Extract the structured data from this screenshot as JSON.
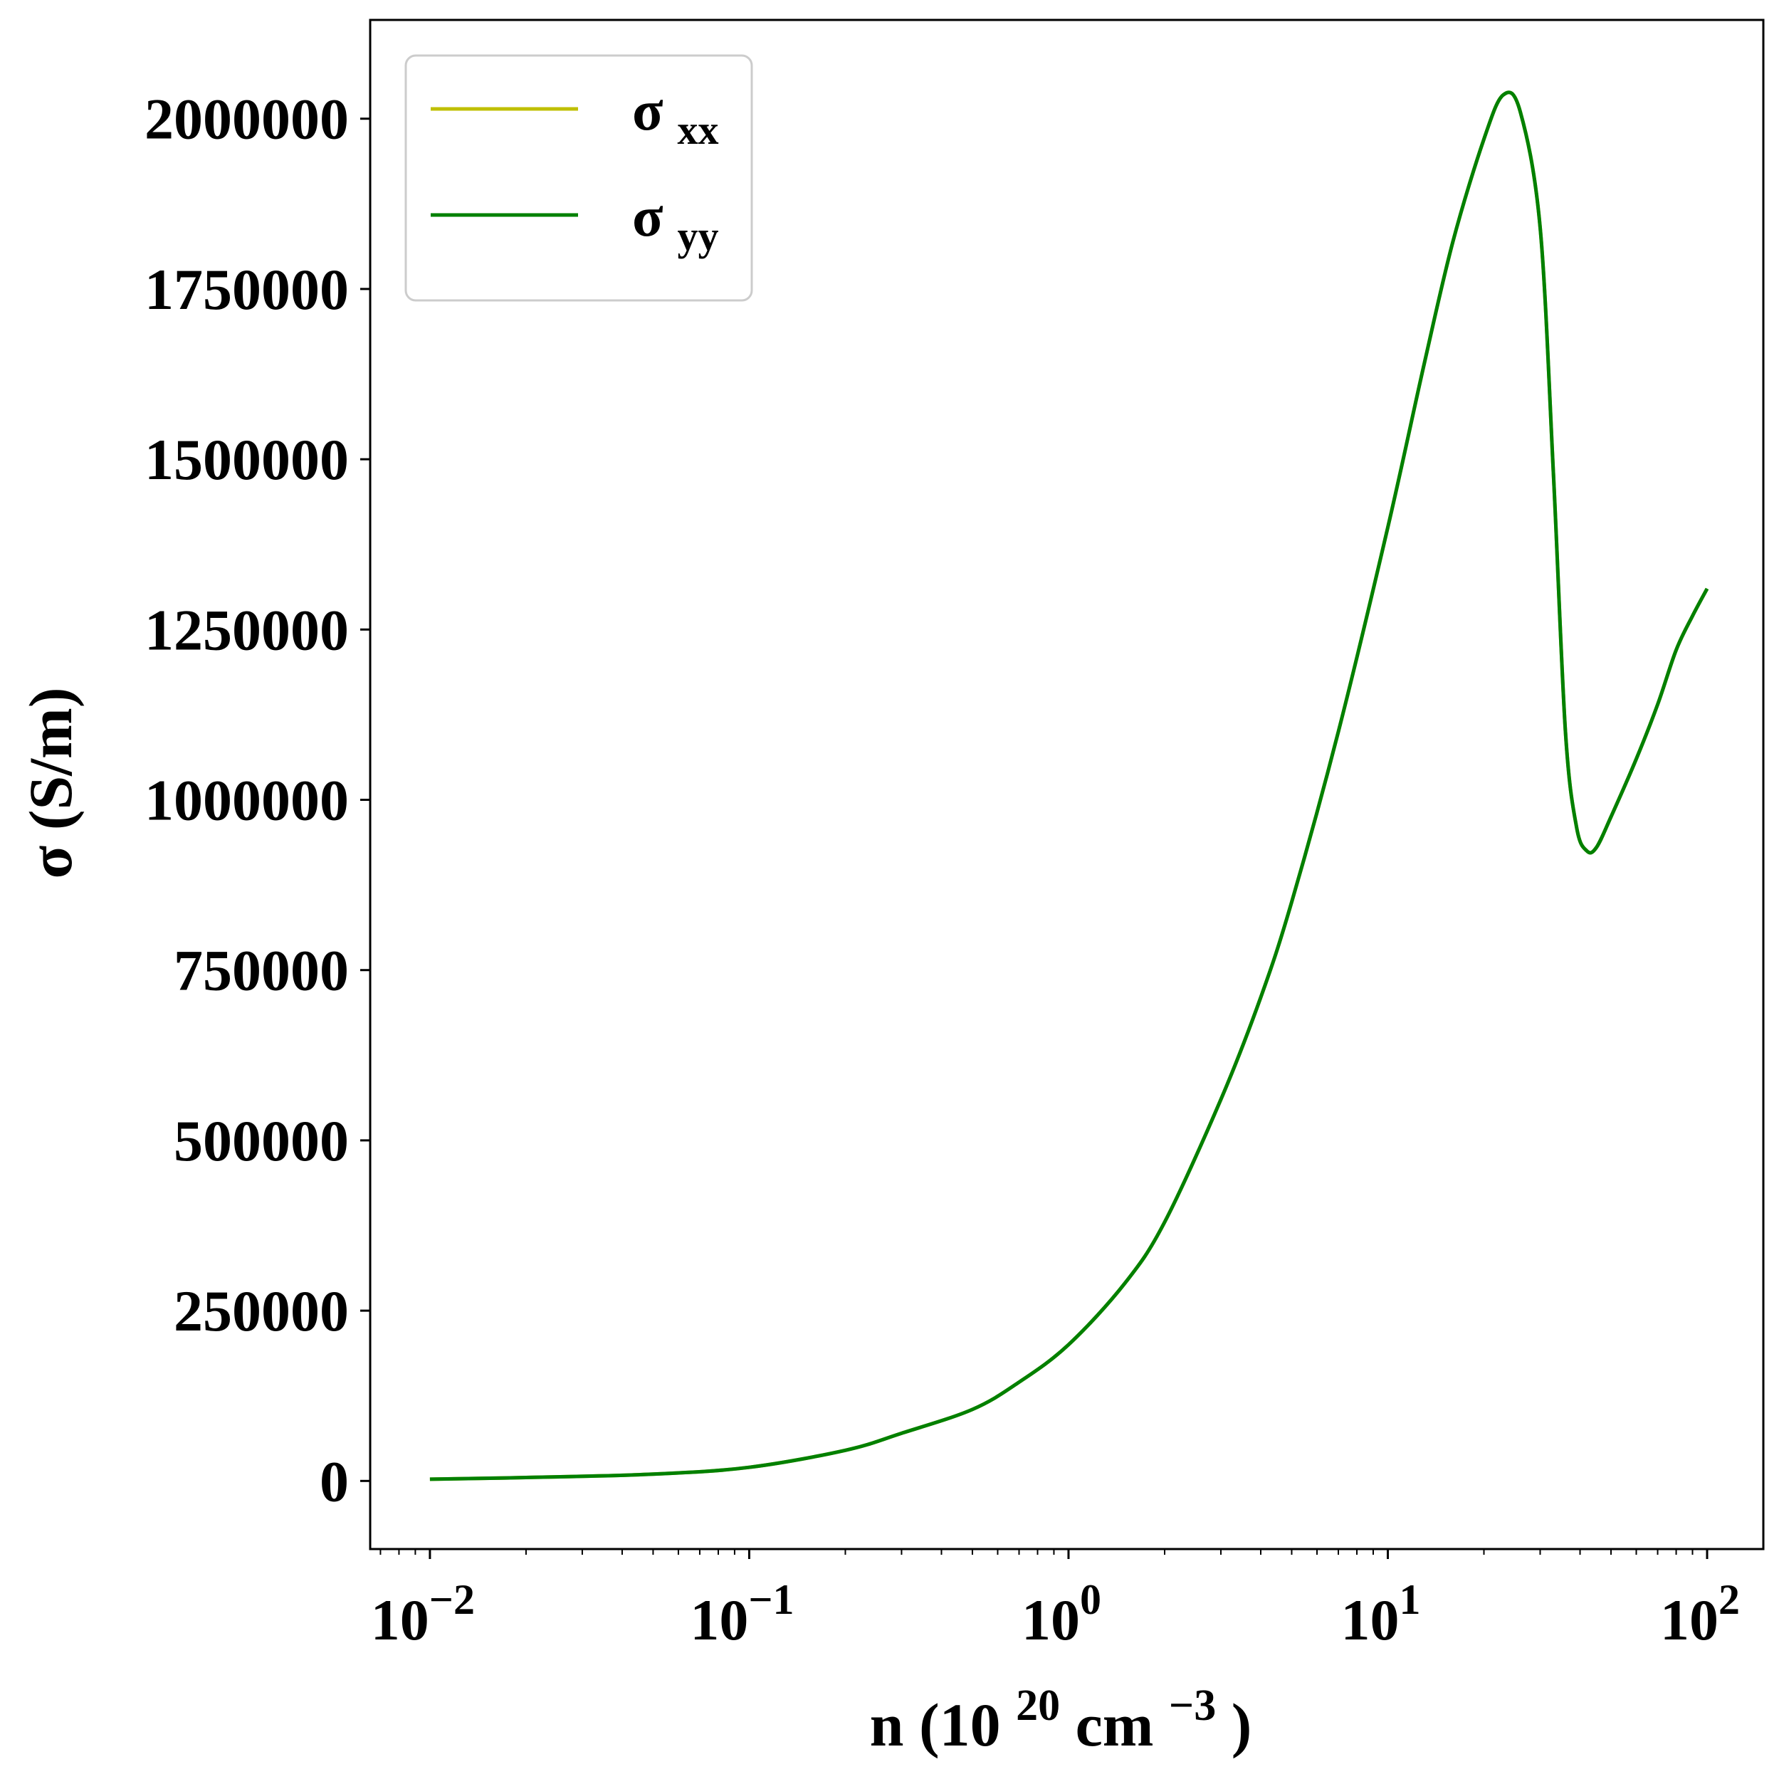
{
  "chart_data": {
    "type": "line",
    "title": "",
    "xlabel": {
      "base": "n (10",
      "sup1": "20",
      "mid": " cm",
      "sup2": "−3",
      "end": ")"
    },
    "ylabel": "σ (S/m)",
    "xscale": "log",
    "xlim": [
      0.0065,
      150
    ],
    "ylim": [
      -100000,
      2145000
    ],
    "x_ticks": [
      {
        "value": 0.01,
        "base": "10",
        "exp": "−2"
      },
      {
        "value": 0.1,
        "base": "10",
        "exp": "−1"
      },
      {
        "value": 1,
        "base": "10",
        "exp": "0"
      },
      {
        "value": 10,
        "base": "10",
        "exp": "1"
      },
      {
        "value": 100,
        "base": "10",
        "exp": "2"
      }
    ],
    "y_ticks": [
      {
        "value": 0,
        "label": "0"
      },
      {
        "value": 250000,
        "label": "250000"
      },
      {
        "value": 500000,
        "label": "500000"
      },
      {
        "value": 750000,
        "label": "750000"
      },
      {
        "value": 1000000,
        "label": "1000000"
      },
      {
        "value": 1250000,
        "label": "1250000"
      },
      {
        "value": 1500000,
        "label": "1500000"
      },
      {
        "value": 1750000,
        "label": "1750000"
      },
      {
        "value": 2000000,
        "label": "2000000"
      }
    ],
    "grid": false,
    "legend_position": "top-left",
    "series": [
      {
        "name": "σxx",
        "legend_base": "σ",
        "legend_sub": "xx",
        "color": "#bfbf00",
        "x": [
          0.01,
          0.02,
          0.05,
          0.1,
          0.2,
          0.3,
          0.5,
          0.7,
          1.0,
          1.5,
          2.0,
          3.0,
          4.0,
          5.0,
          7.0,
          10.0,
          13.0,
          16.0,
          20.0,
          23.0,
          26.0,
          30.0,
          33.0,
          36.0,
          39.0,
          42.0,
          45.0,
          50.0,
          60.0,
          70.0,
          80.0,
          90.0,
          100.0
        ],
        "y": [
          2500,
          5000,
          10000,
          20000,
          45000,
          70000,
          105000,
          145000,
          200000,
          290000,
          380000,
          560000,
          710000,
          850000,
          1100000,
          1400000,
          1640000,
          1820000,
          1970000,
          2035000,
          2010000,
          1840000,
          1480000,
          1100000,
          960000,
          925000,
          930000,
          975000,
          1060000,
          1140000,
          1220000,
          1270000,
          1310000
        ]
      },
      {
        "name": "σyy",
        "legend_base": "σ",
        "legend_sub": "yy",
        "color": "#008000",
        "x": [
          0.01,
          0.02,
          0.05,
          0.1,
          0.2,
          0.3,
          0.5,
          0.7,
          1.0,
          1.5,
          2.0,
          3.0,
          4.0,
          5.0,
          7.0,
          10.0,
          13.0,
          16.0,
          20.0,
          23.0,
          26.0,
          30.0,
          33.0,
          36.0,
          39.0,
          42.0,
          45.0,
          50.0,
          60.0,
          70.0,
          80.0,
          90.0,
          100.0
        ],
        "y": [
          2500,
          5000,
          10000,
          20000,
          45000,
          70000,
          105000,
          145000,
          200000,
          290000,
          380000,
          560000,
          710000,
          850000,
          1100000,
          1400000,
          1640000,
          1820000,
          1970000,
          2035000,
          2010000,
          1840000,
          1480000,
          1100000,
          960000,
          925000,
          930000,
          975000,
          1060000,
          1140000,
          1220000,
          1270000,
          1310000
        ]
      }
    ]
  }
}
